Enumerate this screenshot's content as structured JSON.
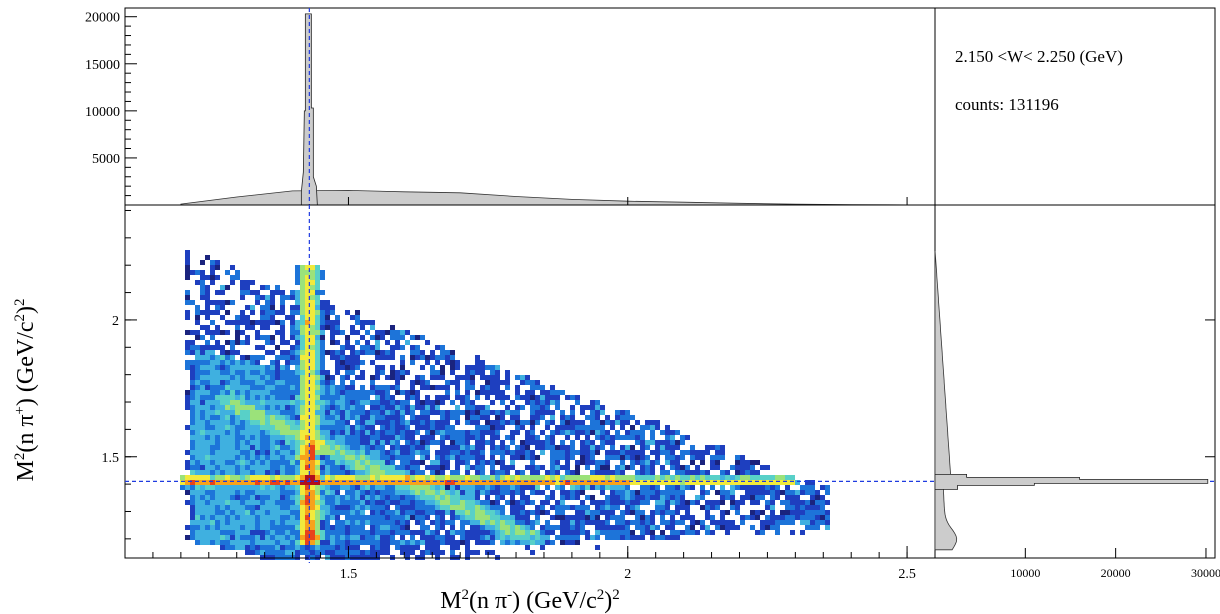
{
  "info": {
    "w_range": "2.150 <W< 2.250 (GeV)",
    "counts": "counts: 131196"
  },
  "chart_data": [
    {
      "panel": "top-projection",
      "type": "histogram",
      "xlim": [
        1.1,
        2.55
      ],
      "ylim": [
        0,
        20500
      ],
      "y_ticks": [
        5000,
        10000,
        15000,
        20000
      ],
      "y_tick_labels": [
        "5000",
        "10000",
        "15000",
        "20000"
      ],
      "peak_x": 1.43,
      "peak_height": 20300,
      "continuum": [
        [
          1.2,
          100
        ],
        [
          1.3,
          850
        ],
        [
          1.4,
          1500
        ],
        [
          1.5,
          1550
        ],
        [
          1.6,
          1400
        ],
        [
          1.7,
          1300
        ],
        [
          1.8,
          900
        ],
        [
          1.9,
          600
        ],
        [
          2.0,
          400
        ],
        [
          2.1,
          300
        ],
        [
          2.2,
          180
        ],
        [
          2.3,
          90
        ],
        [
          2.4,
          40
        ],
        [
          2.5,
          10
        ]
      ],
      "fill_color": "#cccccc",
      "reference_line_x": 1.43
    },
    {
      "panel": "main-2d",
      "type": "heatmap",
      "xlim": [
        1.1,
        2.55
      ],
      "ylim": [
        1.13,
        2.42
      ],
      "x_ticks": [
        1.5,
        2,
        2.5
      ],
      "x_tick_labels": [
        "1.5",
        "2",
        "2.5"
      ],
      "y_ticks": [
        1.5,
        2
      ],
      "y_tick_labels": [
        "1.5",
        "2"
      ],
      "xlabel_main": "M",
      "xlabel_sup": "2",
      "xlabel_rest1": "(n π",
      "xlabel_sup2": "-",
      "xlabel_rest2": ") (GeV/c",
      "xlabel_sup3": "2",
      "xlabel_rest3": ")",
      "xlabel_sup4": "2",
      "ylabel_main": "M",
      "ylabel_sup": "2",
      "ylabel_rest1": "(n π",
      "ylabel_sup2": "+",
      "ylabel_rest2": ") (GeV/c",
      "ylabel_sup3": "2",
      "ylabel_rest3": ")",
      "ylabel_sup4": "2",
      "vertical_band_x": 1.43,
      "horizontal_band_y": 1.41,
      "colormap": [
        "#1a237e",
        "#1e3fbf",
        "#1d74d9",
        "#3fb0e0",
        "#58d0c8",
        "#9be27a",
        "#f1ea3c",
        "#f7a21b",
        "#e8441a",
        "#b00d1c"
      ],
      "reference_lines": {
        "x": 1.43,
        "y": 1.41,
        "color": "#1f3be0"
      }
    },
    {
      "panel": "right-projection",
      "type": "histogram",
      "orientation": "horizontal",
      "xlim": [
        0,
        31000
      ],
      "x_ticks": [
        10000,
        20000,
        30000
      ],
      "x_tick_labels": [
        "10000",
        "20000",
        "30000"
      ],
      "peak_y": 1.41,
      "peak_height": 30200,
      "fill_color": "#cccccc"
    }
  ]
}
